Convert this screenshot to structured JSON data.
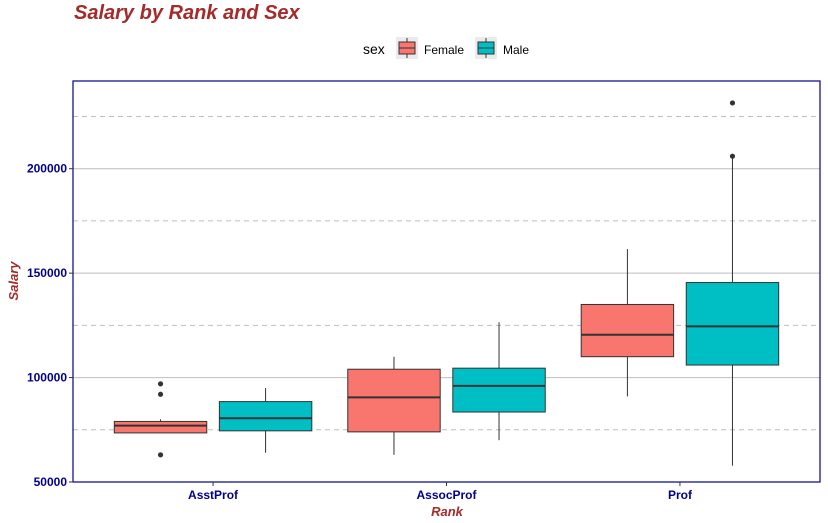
{
  "colors": {
    "title": "#a52a2a",
    "axis_title": "#a52a2a",
    "tick_text": "#00008b",
    "panel_border": "#00008b",
    "grid_major": "#bebebe",
    "grid_minor": "#bebebe",
    "box_stroke": "#333333",
    "legend_key_bg": "#ebebeb"
  },
  "chart_data": {
    "type": "boxplot",
    "title": "Salary by Rank and Sex",
    "xlabel": "Rank",
    "ylabel": "Salary",
    "categories": [
      "AsstProf",
      "AssocProf",
      "Prof"
    ],
    "ylim": [
      50000,
      242000
    ],
    "yticks": [
      50000,
      100000,
      150000,
      200000
    ],
    "ytick_labels": [
      "50000",
      "100000",
      "150000",
      "200000"
    ],
    "minor_grid": [
      75000,
      125000,
      175000,
      225000
    ],
    "legend": {
      "title": "sex",
      "position": "top"
    },
    "series": [
      {
        "name": "Female",
        "color": "#f8766d",
        "boxes": [
          {
            "category": "AsstProf",
            "whisker_low": 73500,
            "q1": 73500,
            "median": 77000,
            "q3": 79000,
            "whisker_high": 80000,
            "outliers": [
              63000,
              92000,
              97000
            ]
          },
          {
            "category": "AssocProf",
            "whisker_low": 63000,
            "q1": 74000,
            "median": 90500,
            "q3": 104000,
            "whisker_high": 110000,
            "outliers": []
          },
          {
            "category": "Prof",
            "whisker_low": 91000,
            "q1": 110000,
            "median": 120500,
            "q3": 135000,
            "whisker_high": 161500,
            "outliers": []
          }
        ]
      },
      {
        "name": "Male",
        "color": "#00bfc4",
        "boxes": [
          {
            "category": "AsstProf",
            "whisker_low": 64000,
            "q1": 74500,
            "median": 80500,
            "q3": 88500,
            "whisker_high": 95000,
            "outliers": []
          },
          {
            "category": "AssocProf",
            "whisker_low": 70000,
            "q1": 83500,
            "median": 96000,
            "q3": 104500,
            "whisker_high": 126500,
            "outliers": []
          },
          {
            "category": "Prof",
            "whisker_low": 57800,
            "q1": 106000,
            "median": 124500,
            "q3": 145500,
            "whisker_high": 205000,
            "outliers": [
              206000,
              231500
            ]
          }
        ]
      }
    ]
  }
}
